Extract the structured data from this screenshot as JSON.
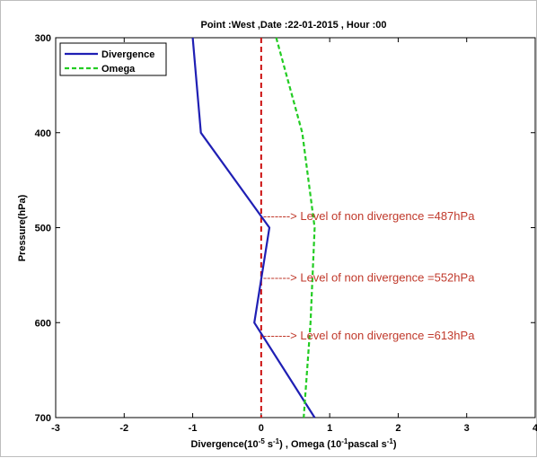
{
  "chart_data": {
    "type": "line",
    "title": "Point :West  ,Date :22-01-2015 , Hour :00",
    "xlabel": {
      "pre": "Divergence(10",
      "sup1": "-5",
      "mid1": " s",
      "sup2": "-1",
      "mid2": ") , Omega (10",
      "sup3": "-1",
      "mid3": "pascal s",
      "sup4": "-1",
      "post": ")"
    },
    "ylabel": "Pressure(hPa)",
    "xlim": [
      -3,
      4
    ],
    "ylim": [
      300,
      700
    ],
    "y_reversed": true,
    "xticks": [
      "-3",
      "-2",
      "-1",
      "0",
      "1",
      "2",
      "3",
      "4"
    ],
    "yticks": [
      "300",
      "400",
      "500",
      "600",
      "700"
    ],
    "grid": false,
    "legend_position": "top-left",
    "series": [
      {
        "name": "Divergence",
        "color": "#1f1fb4",
        "style": "solid",
        "points": [
          [
            -1.0,
            300
          ],
          [
            -0.88,
            400
          ],
          [
            0.12,
            500
          ],
          [
            -0.1,
            600
          ],
          [
            0.78,
            700
          ]
        ]
      },
      {
        "name": "Omega",
        "color": "#22cc22",
        "style": "dashed",
        "points": [
          [
            0.22,
            300
          ],
          [
            0.6,
            400
          ],
          [
            0.78,
            500
          ],
          [
            0.72,
            600
          ],
          [
            0.62,
            700
          ]
        ]
      }
    ],
    "zero_line": {
      "x": 0,
      "color": "#cc1111",
      "style": "dashed"
    },
    "annotations": [
      {
        "arrow": "------->",
        "text": "Level of non divergence =487hPa",
        "pressure": 487
      },
      {
        "arrow": "------->",
        "text": "Level of non divergence =552hPa",
        "pressure": 552
      },
      {
        "arrow": "------->",
        "text": "Level of non divergence =613hPa",
        "pressure": 613
      }
    ]
  }
}
